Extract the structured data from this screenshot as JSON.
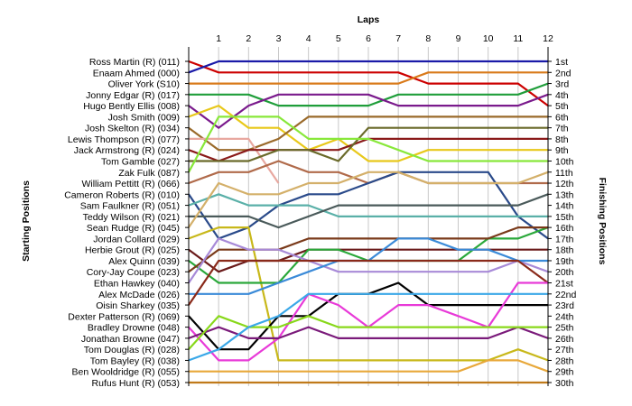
{
  "chart_data": {
    "type": "line",
    "title": "",
    "xlabel": "Laps",
    "ylabel_left": "Starting Positions",
    "ylabel_right": "Finishing Positions",
    "laps": [
      1,
      2,
      3,
      4,
      5,
      6,
      7,
      8,
      9,
      10,
      11,
      12
    ],
    "start_order": [
      "Ross Martin  (R) (011)",
      "Enaam Ahmed (000)",
      "Oliver York (S10)",
      "Jonny Edgar (R) (017)",
      "Hugo Bently Ellis (008)",
      "Josh Smith (009)",
      "Josh Skelton  (R) (034)",
      "Lewis Thompson (R) (077)",
      "Jack Armstrong  (R) (024)",
      "Tom Gamble (027)",
      "Zak Fulk (087)",
      "William Pettitt (R) (066)",
      "Cameron Roberts  (R) (010)",
      "Sam Faulkner  (R) (051)",
      "Teddy Wilson  (R) (021)",
      "Sean Rudge (R) (045)",
      "Jordan Collard (029)",
      "Herbie Grout  (R) (025)",
      "Alex Quinn (039)",
      "Cory-Jay Coupe (023)",
      "Ethan Hawkey (040)",
      "Alex McDade (026)",
      "Oisin Sharkey (035)",
      "Dexter Patterson (R) (069)",
      "Bradley Drowne (048)",
      "Jonathan Browne (047)",
      "Tom Douglas  (R) (028)",
      "Tom Bayley (R) (038)",
      "Ben Wooldridge (R) (055)",
      "Rufus Hunt (R) (053)"
    ],
    "finish_labels": [
      "1st",
      "2nd",
      "3rd",
      "4th",
      "5th",
      "6th",
      "7th",
      "8th",
      "9th",
      "10th",
      "11th",
      "12th",
      "13th",
      "14th",
      "15th",
      "16th",
      "17th",
      "18th",
      "19th",
      "20th",
      "21st",
      "22nd",
      "23rd",
      "24th",
      "25th",
      "26th",
      "27th",
      "28th",
      "29th",
      "30th"
    ],
    "y_range": [
      1,
      30
    ],
    "x_range": [
      0,
      12
    ],
    "series": [
      {
        "start": 1,
        "color": "#cc0000",
        "positions": [
          2,
          2,
          2,
          2,
          2,
          2,
          2,
          3,
          3,
          3,
          3,
          5
        ]
      },
      {
        "start": 2,
        "color": "#1a1aa8",
        "positions": [
          1,
          1,
          1,
          1,
          1,
          1,
          1,
          1,
          1,
          1,
          1,
          1
        ]
      },
      {
        "start": 3,
        "color": "#d97a1a",
        "positions": [
          3,
          3,
          3,
          3,
          3,
          3,
          3,
          2,
          2,
          2,
          2,
          2
        ]
      },
      {
        "start": 4,
        "color": "#1f9e3a",
        "positions": [
          4,
          4,
          5,
          5,
          5,
          5,
          4,
          4,
          4,
          4,
          4,
          3
        ]
      },
      {
        "start": 5,
        "color": "#7a1a8c",
        "positions": [
          7,
          5,
          4,
          4,
          4,
          4,
          5,
          5,
          5,
          5,
          5,
          4
        ]
      },
      {
        "start": 6,
        "color": "#e8c81a",
        "positions": [
          5,
          7,
          7,
          9,
          8,
          10,
          10,
          9,
          9,
          9,
          9,
          9
        ]
      },
      {
        "start": 7,
        "color": "#9a6a2a",
        "positions": [
          9,
          9,
          8,
          6,
          6,
          6,
          6,
          6,
          6,
          6,
          6,
          6
        ]
      },
      {
        "start": 8,
        "color": "#e8a8a0",
        "positions": [
          8,
          8,
          12,
          null,
          null,
          null,
          null,
          null,
          null,
          null,
          null,
          null
        ]
      },
      {
        "start": 9,
        "color": "#8a1a1a",
        "positions": [
          10,
          9,
          9,
          9,
          9,
          8,
          8,
          8,
          8,
          8,
          8,
          8
        ]
      },
      {
        "start": 10,
        "color": "#6a6a2a",
        "positions": [
          10,
          10,
          9,
          9,
          10,
          7,
          7,
          7,
          7,
          7,
          7,
          7
        ]
      },
      {
        "start": 11,
        "color": "#88e83a",
        "positions": [
          6,
          6,
          6,
          8,
          8,
          8,
          9,
          10,
          10,
          10,
          10,
          10
        ]
      },
      {
        "start": 12,
        "color": "#b06a4a",
        "positions": [
          11,
          11,
          10,
          11,
          11,
          12,
          11,
          12,
          12,
          12,
          12,
          12
        ]
      },
      {
        "start": 13,
        "color": "#2a4a8a",
        "positions": [
          17,
          16,
          14,
          13,
          13,
          12,
          11,
          11,
          11,
          11,
          15,
          17
        ]
      },
      {
        "start": 14,
        "color": "#5ab0a8",
        "positions": [
          13,
          14,
          14,
          14,
          15,
          15,
          15,
          15,
          15,
          15,
          15,
          15
        ]
      },
      {
        "start": 15,
        "color": "#4a5a5a",
        "positions": [
          15,
          15,
          16,
          15,
          14,
          14,
          14,
          14,
          14,
          14,
          14,
          13
        ]
      },
      {
        "start": 16,
        "color": "#d4b06a",
        "positions": [
          12,
          13,
          13,
          12,
          12,
          11,
          11,
          12,
          12,
          12,
          12,
          11
        ]
      },
      {
        "start": 17,
        "color": "#c8b81a",
        "positions": [
          16,
          16,
          28,
          28,
          28,
          28,
          28,
          28,
          28,
          28,
          27,
          28
        ]
      },
      {
        "start": 18,
        "color": "#6a1a1a",
        "positions": [
          20,
          19,
          19,
          18,
          18,
          18,
          18,
          18,
          18,
          18,
          18,
          18
        ]
      },
      {
        "start": 19,
        "color": "#2aa83a",
        "positions": [
          21,
          21,
          21,
          18,
          18,
          19,
          19,
          19,
          19,
          17,
          17,
          16
        ]
      },
      {
        "start": 20,
        "color": "#7a3a1a",
        "positions": [
          18,
          18,
          18,
          17,
          17,
          17,
          17,
          17,
          17,
          17,
          16,
          16
        ]
      },
      {
        "start": 21,
        "color": "#a88ad8",
        "positions": [
          17,
          18,
          18,
          19,
          20,
          20,
          20,
          20,
          20,
          20,
          19,
          20
        ]
      },
      {
        "start": 22,
        "color": "#3a8ad8",
        "positions": [
          22,
          22,
          21,
          20,
          19,
          19,
          17,
          17,
          18,
          18,
          19,
          19
        ]
      },
      {
        "start": 23,
        "color": "#8a2a1a",
        "positions": [
          19,
          19,
          19,
          19,
          19,
          19,
          19,
          19,
          19,
          19,
          19,
          21
        ]
      },
      {
        "start": 24,
        "color": "#000000",
        "positions": [
          27,
          27,
          24,
          24,
          22,
          22,
          21,
          23,
          23,
          23,
          23,
          23
        ]
      },
      {
        "start": 25,
        "color": "#e83ad8",
        "positions": [
          28,
          28,
          26,
          22,
          23,
          25,
          23,
          23,
          24,
          25,
          21,
          21
        ]
      },
      {
        "start": 26,
        "color": "#7a1a7a",
        "positions": [
          25,
          26,
          26,
          25,
          26,
          26,
          26,
          26,
          26,
          26,
          25,
          26
        ]
      },
      {
        "start": 27,
        "color": "#88d81a",
        "positions": [
          24,
          25,
          25,
          24,
          25,
          25,
          25,
          25,
          25,
          25,
          25,
          25
        ]
      },
      {
        "start": 28,
        "color": "#3aa8e8",
        "positions": [
          27,
          25,
          24,
          22,
          22,
          22,
          22,
          22,
          22,
          22,
          22,
          22
        ]
      },
      {
        "start": 29,
        "color": "#e8a83a",
        "positions": [
          29,
          29,
          29,
          29,
          29,
          29,
          29,
          29,
          29,
          28,
          28,
          29
        ]
      },
      {
        "start": 30,
        "color": "#c07a1a",
        "positions": [
          30,
          30,
          30,
          30,
          30,
          30,
          30,
          30,
          30,
          30,
          30,
          30
        ]
      }
    ]
  }
}
